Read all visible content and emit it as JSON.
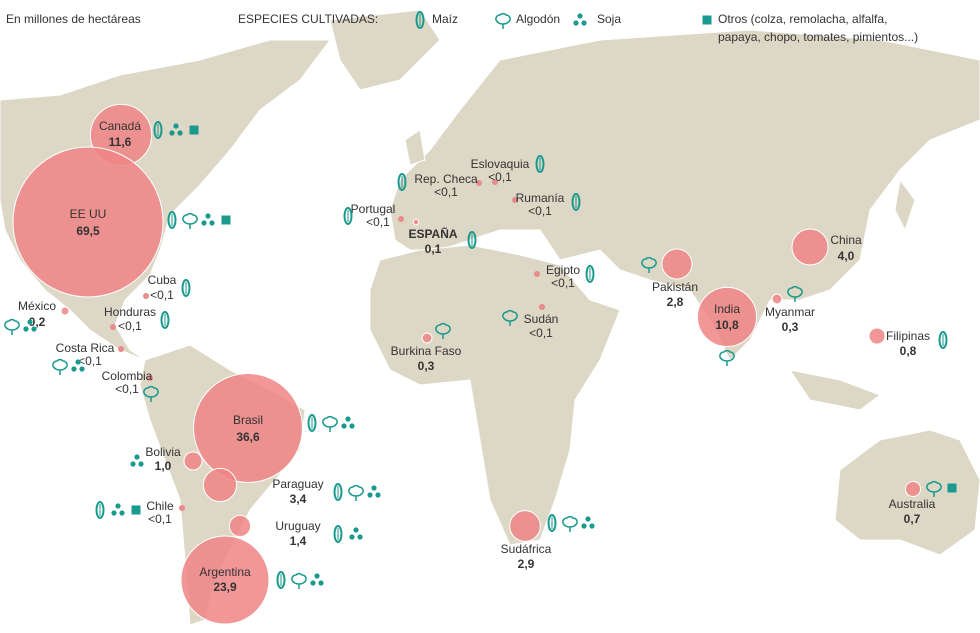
{
  "header": {
    "unit_note": "En millones de hectáreas",
    "legend_title": "ESPECIES CULTIVADAS:",
    "legend": [
      "Maíz",
      "Algodón",
      "Soja",
      "Otros (colza, remolacha, alfalfa,",
      "papaya, chopo, tomates, pimientos...)"
    ]
  },
  "countries": [
    {
      "name": "Canadá",
      "value": 11.6,
      "value_label": "11,6"
    },
    {
      "name": "EE UU",
      "value": 69.5,
      "value_label": "69,5"
    },
    {
      "name": "México",
      "value": 0.2,
      "value_label": "0,2"
    },
    {
      "name": "Cuba",
      "value_label": "<0,1"
    },
    {
      "name": "Honduras",
      "value_label": "<0,1"
    },
    {
      "name": "Costa Rica",
      "value_label": "<0,1"
    },
    {
      "name": "Colombia",
      "value_label": "<0,1"
    },
    {
      "name": "Brasil",
      "value": 36.6,
      "value_label": "36,6"
    },
    {
      "name": "Bolivia",
      "value": 1.0,
      "value_label": "1,0"
    },
    {
      "name": "Paraguay",
      "value": 3.4,
      "value_label": "3,4"
    },
    {
      "name": "Uruguay",
      "value": 1.4,
      "value_label": "1,4"
    },
    {
      "name": "Chile",
      "value_label": "<0,1"
    },
    {
      "name": "Argentina",
      "value": 23.9,
      "value_label": "23,9"
    },
    {
      "name": "ESPAÑA",
      "value": 0.1,
      "value_label": "0,1"
    },
    {
      "name": "Portugal",
      "value_label": "<0,1"
    },
    {
      "name": "Rep. Checa",
      "value_label": "<0,1"
    },
    {
      "name": "Eslovaquia",
      "value_label": "<0,1"
    },
    {
      "name": "Rumanía",
      "value_label": "<0,1"
    },
    {
      "name": "Egipto",
      "value_label": "<0,1"
    },
    {
      "name": "Sudán",
      "value_label": "<0,1"
    },
    {
      "name": "Burkina Faso",
      "value": 0.3,
      "value_label": "0,3"
    },
    {
      "name": "Sudáfrica",
      "value": 2.9,
      "value_label": "2,9"
    },
    {
      "name": "Pakistán",
      "value": 2.8,
      "value_label": "2,8"
    },
    {
      "name": "India",
      "value": 10.8,
      "value_label": "10,8"
    },
    {
      "name": "China",
      "value": 4.0,
      "value_label": "4,0"
    },
    {
      "name": "Myanmar",
      "value": 0.3,
      "value_label": "0,3"
    },
    {
      "name": "Filipinas",
      "value": 0.8,
      "value_label": "0,8"
    },
    {
      "name": "Australia",
      "value": 0.7,
      "value_label": "0,7"
    }
  ]
}
